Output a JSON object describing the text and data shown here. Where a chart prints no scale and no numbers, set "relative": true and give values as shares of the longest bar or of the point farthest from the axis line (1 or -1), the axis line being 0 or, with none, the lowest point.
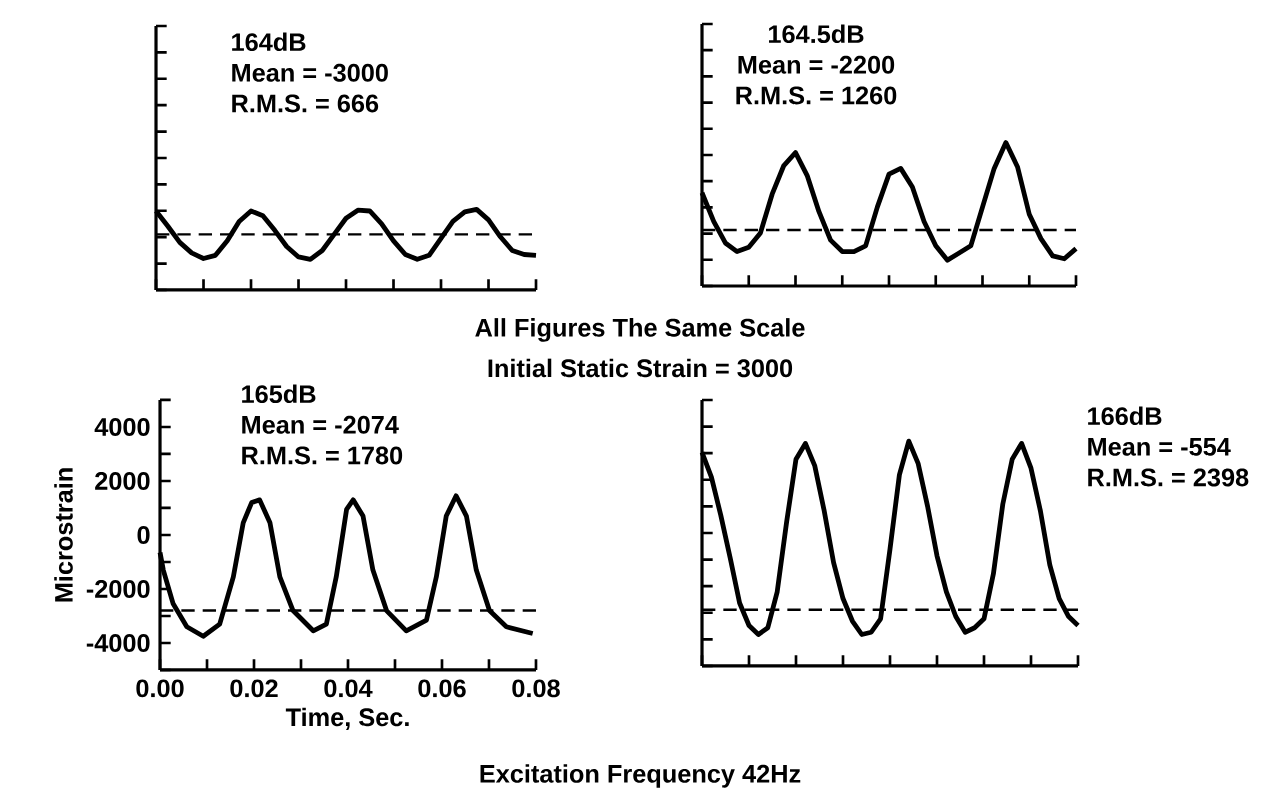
{
  "chart_data": [
    {
      "type": "line",
      "relative": true,
      "annotations": [
        "164dB",
        "Mean = -3000",
        "R.M.S. = 666",
        "All Figures The Same Scale",
        "Initial Static Strain = 3000"
      ],
      "categories": [
        null,
        null,
        null,
        null,
        null,
        null,
        null,
        null,
        null,
        null,
        null,
        null,
        null,
        null,
        null,
        null,
        null,
        null,
        null,
        null,
        null,
        null,
        null,
        null,
        null,
        null,
        null,
        null,
        null,
        null,
        null,
        null,
        null
      ],
      "series": [
        {
          "color": "#000000",
          "values": [
            0.98,
            0.79,
            0.59,
            0.46,
            0.39,
            0.43,
            0.61,
            0.85,
            0.98,
            0.92,
            0.74,
            0.54,
            0.41,
            0.38,
            0.49,
            0.69,
            0.89,
            0.99,
            0.98,
            0.82,
            0.61,
            0.44,
            0.38,
            0.43,
            0.64,
            0.85,
            0.97,
            1,
            0.87,
            0.66,
            0.49,
            0.44,
            0.43
          ]
        }
      ],
      "ref_lines": [
        {
          "axis": "y",
          "value": 0.69,
          "color": "#000000",
          "line_style": "dashed"
        }
      ]
    },
    {
      "type": "line",
      "relative": true,
      "annotations": [
        "164.5dB",
        "Mean = -2200",
        "R.M.S. = 1260"
      ],
      "categories": [
        null,
        null,
        null,
        null,
        null,
        null,
        null,
        null,
        null,
        null,
        null,
        null,
        null,
        null,
        null,
        null,
        null,
        null,
        null,
        null,
        null,
        null,
        null,
        null,
        null,
        null,
        null,
        null,
        null,
        null,
        null,
        null,
        null
      ],
      "series": [
        {
          "color": "#000000",
          "values": [
            0.65,
            0.45,
            0.3,
            0.24,
            0.27,
            0.37,
            0.64,
            0.84,
            0.93,
            0.77,
            0.52,
            0.32,
            0.24,
            0.24,
            0.28,
            0.55,
            0.78,
            0.82,
            0.69,
            0.45,
            0.28,
            0.18,
            0.23,
            0.28,
            0.55,
            0.82,
            1,
            0.83,
            0.5,
            0.33,
            0.21,
            0.19,
            0.26
          ]
        }
      ],
      "ref_lines": [
        {
          "axis": "y",
          "value": 0.39,
          "color": "#000000",
          "line_style": "dashed"
        }
      ]
    },
    {
      "type": "line",
      "annotations": [
        "165dB",
        "Mean = -2074",
        "R.M.S. = 1780"
      ],
      "xlabel": "Time, Sec.",
      "ylabel": "Microstrain",
      "series": [
        {
          "color": "#000000",
          "x": [
            0,
            0.0007,
            0.0028,
            0.0057,
            0.0092,
            0.0127,
            0.0156,
            0.0177,
            0.0195,
            0.0212,
            0.0234,
            0.0255,
            0.0283,
            0.0326,
            0.0354,
            0.0375,
            0.0397,
            0.0411,
            0.0432,
            0.0453,
            0.0482,
            0.0524,
            0.0567,
            0.0588,
            0.0609,
            0.063,
            0.0652,
            0.0673,
            0.0701,
            0.0737,
            0.0793
          ],
          "values": [
            -650,
            -1300,
            -2550,
            -3400,
            -3750,
            -3300,
            -1550,
            450,
            1200,
            1300,
            450,
            -1550,
            -2800,
            -3550,
            -3300,
            -1550,
            950,
            1300,
            700,
            -1300,
            -2800,
            -3550,
            -3150,
            -1550,
            700,
            1450,
            700,
            -1300,
            -2800,
            -3400,
            -3650
          ]
        }
      ],
      "ref_lines": [
        {
          "axis": "y",
          "value": -2800,
          "color": "#000000",
          "line_style": "dashed"
        }
      ],
      "xlim": [
        0,
        0.08
      ],
      "ylim": [
        -5000,
        5000
      ],
      "xticks": [
        {
          "value": 0,
          "label": "0.00"
        },
        {
          "value": 0.01,
          "label": null
        },
        {
          "value": 0.02,
          "label": "0.02"
        },
        {
          "value": 0.03,
          "label": null
        },
        {
          "value": 0.04,
          "label": "0.04"
        },
        {
          "value": 0.05,
          "label": null
        },
        {
          "value": 0.06,
          "label": "0.06"
        },
        {
          "value": 0.07,
          "label": null
        },
        {
          "value": 0.08,
          "label": "0.08"
        }
      ],
      "yticks": [
        {
          "value": -5000,
          "label": null
        },
        -4000,
        {
          "value": -3000,
          "label": null
        },
        -2000,
        {
          "value": -1000,
          "label": null
        },
        0,
        {
          "value": 1000,
          "label": null
        },
        2000,
        {
          "value": 3000,
          "label": null
        },
        4000,
        {
          "value": 5000,
          "label": null
        }
      ]
    },
    {
      "type": "line",
      "relative": true,
      "annotations": [
        "166dB",
        "Mean = -554",
        "R.M.S. = 2398",
        "Excitation Frequency 42Hz"
      ],
      "categories": [
        null,
        null,
        null,
        null,
        null,
        null,
        null,
        null,
        null,
        null,
        null,
        null,
        null,
        null,
        null,
        null,
        null,
        null,
        null,
        null,
        null,
        null,
        null,
        null,
        null,
        null,
        null,
        null,
        null,
        null,
        null,
        null,
        null,
        null,
        null,
        null,
        null,
        null,
        null,
        null,
        null
      ],
      "series": [
        {
          "color": "#000000",
          "values": [
            0.95,
            0.84,
            0.67,
            0.48,
            0.28,
            0.18,
            0.14,
            0.17,
            0.33,
            0.64,
            0.92,
            0.99,
            0.89,
            0.69,
            0.46,
            0.3,
            0.2,
            0.14,
            0.15,
            0.21,
            0.52,
            0.85,
            1,
            0.9,
            0.71,
            0.49,
            0.33,
            0.22,
            0.15,
            0.17,
            0.21,
            0.41,
            0.72,
            0.92,
            0.99,
            0.88,
            0.69,
            0.45,
            0.3,
            0.22,
            0.18
          ]
        }
      ],
      "ref_lines": [
        {
          "axis": "y",
          "value": 0.25,
          "color": "#000000",
          "line_style": "dashed"
        }
      ]
    }
  ]
}
